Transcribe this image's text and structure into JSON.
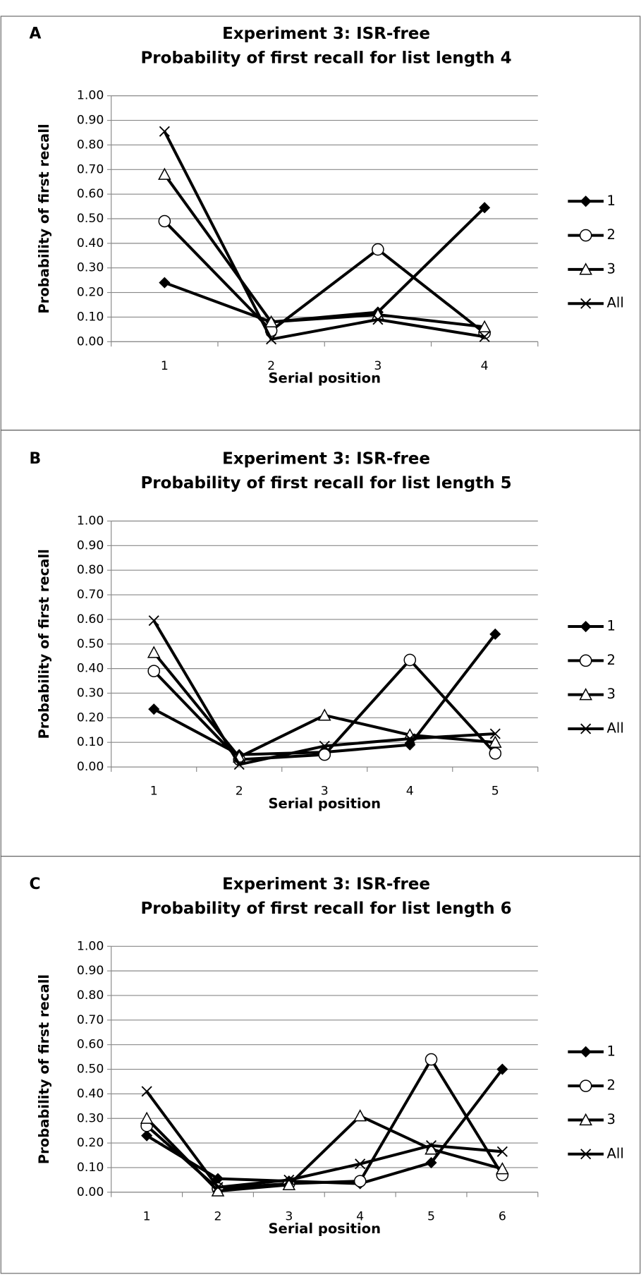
{
  "chart_data": [
    {
      "type": "line",
      "panel": "A",
      "title": "Experiment 3: ISR-free",
      "subtitle": "Probability of first recall for list length 4",
      "x_label": "Serial position",
      "y_label": "Probability of first recall",
      "categories": [
        "1",
        "2",
        "3",
        "4"
      ],
      "ylim": [
        0,
        1
      ],
      "grid": true,
      "yticks": [
        {
          "value": 0,
          "label": "0.00"
        },
        {
          "value": 0.1,
          "label": "0.10"
        },
        {
          "value": 0.2,
          "label": "0.20"
        },
        {
          "value": 0.3,
          "label": "0.30"
        },
        {
          "value": 0.4,
          "label": "0.40"
        },
        {
          "value": 0.5,
          "label": "0.50"
        },
        {
          "value": 0.6,
          "label": "0.60"
        },
        {
          "value": 0.7,
          "label": "0.70"
        },
        {
          "value": 0.8,
          "label": "0.80"
        },
        {
          "value": 0.9,
          "label": "0.90"
        },
        {
          "value": 1,
          "label": "1.00"
        }
      ],
      "series": [
        {
          "name": "1",
          "color": "#000000",
          "marker": "diamond",
          "values": [
            0.24,
            0.08,
            0.12,
            0.545
          ]
        },
        {
          "name": "2",
          "color": "#000000",
          "marker": "circle",
          "values": [
            0.49,
            0.045,
            0.375,
            0.035
          ]
        },
        {
          "name": "3",
          "color": "#000000",
          "marker": "triangle",
          "values": [
            0.68,
            0.08,
            0.11,
            0.06
          ]
        },
        {
          "name": "All",
          "color": "#000000",
          "marker": "x",
          "values": [
            0.855,
            0.01,
            0.09,
            0.02
          ]
        }
      ]
    },
    {
      "type": "line",
      "panel": "B",
      "title": "Experiment 3: ISR-free",
      "subtitle": "Probability of first recall for list length 5",
      "x_label": "Serial position",
      "y_label": "Probability of first recall",
      "categories": [
        "1",
        "2",
        "3",
        "4",
        "5"
      ],
      "ylim": [
        0,
        1
      ],
      "grid": true,
      "yticks": [
        {
          "value": 0,
          "label": "0.00"
        },
        {
          "value": 0.1,
          "label": "0.10"
        },
        {
          "value": 0.2,
          "label": "0.20"
        },
        {
          "value": 0.3,
          "label": "0.30"
        },
        {
          "value": 0.4,
          "label": "0.40"
        },
        {
          "value": 0.5,
          "label": "0.50"
        },
        {
          "value": 0.6,
          "label": "0.60"
        },
        {
          "value": 0.7,
          "label": "0.70"
        },
        {
          "value": 0.8,
          "label": "0.80"
        },
        {
          "value": 0.9,
          "label": "0.90"
        },
        {
          "value": 1,
          "label": "1.00"
        }
      ],
      "series": [
        {
          "name": "1",
          "color": "#000000",
          "marker": "diamond",
          "values": [
            0.235,
            0.05,
            0.06,
            0.09,
            0.54
          ]
        },
        {
          "name": "2",
          "color": "#000000",
          "marker": "circle",
          "values": [
            0.39,
            0.03,
            0.05,
            0.435,
            0.055
          ]
        },
        {
          "name": "3",
          "color": "#000000",
          "marker": "triangle",
          "values": [
            0.465,
            0.04,
            0.21,
            0.13,
            0.1
          ]
        },
        {
          "name": "All",
          "color": "#000000",
          "marker": "x",
          "values": [
            0.595,
            0.01,
            0.085,
            0.115,
            0.135
          ]
        }
      ]
    },
    {
      "type": "line",
      "panel": "C",
      "title": "Experiment 3: ISR-free",
      "subtitle": "Probability of first recall for list length 6",
      "x_label": "Serial position",
      "y_label": "Probability of first recall",
      "categories": [
        "1",
        "2",
        "3",
        "4",
        "5",
        "6"
      ],
      "ylim": [
        0,
        1
      ],
      "grid": true,
      "yticks": [
        {
          "value": 0,
          "label": "0.00"
        },
        {
          "value": 0.1,
          "label": "0.10"
        },
        {
          "value": 0.2,
          "label": "0.20"
        },
        {
          "value": 0.3,
          "label": "0.30"
        },
        {
          "value": 0.4,
          "label": "0.40"
        },
        {
          "value": 0.5,
          "label": "0.50"
        },
        {
          "value": 0.6,
          "label": "0.60"
        },
        {
          "value": 0.7,
          "label": "0.70"
        },
        {
          "value": 0.8,
          "label": "0.80"
        },
        {
          "value": 0.9,
          "label": "0.90"
        },
        {
          "value": 1,
          "label": "1.00"
        }
      ],
      "series": [
        {
          "name": "1",
          "color": "#000000",
          "marker": "diamond",
          "values": [
            0.23,
            0.055,
            0.045,
            0.035,
            0.12,
            0.5
          ]
        },
        {
          "name": "2",
          "color": "#000000",
          "marker": "circle",
          "values": [
            0.27,
            0.015,
            0.035,
            0.045,
            0.54,
            0.07
          ]
        },
        {
          "name": "3",
          "color": "#000000",
          "marker": "triangle",
          "values": [
            0.3,
            0.005,
            0.03,
            0.31,
            0.175,
            0.095
          ]
        },
        {
          "name": "All",
          "color": "#000000",
          "marker": "x",
          "values": [
            0.41,
            0.02,
            0.05,
            0.115,
            0.19,
            0.165
          ]
        }
      ]
    }
  ]
}
